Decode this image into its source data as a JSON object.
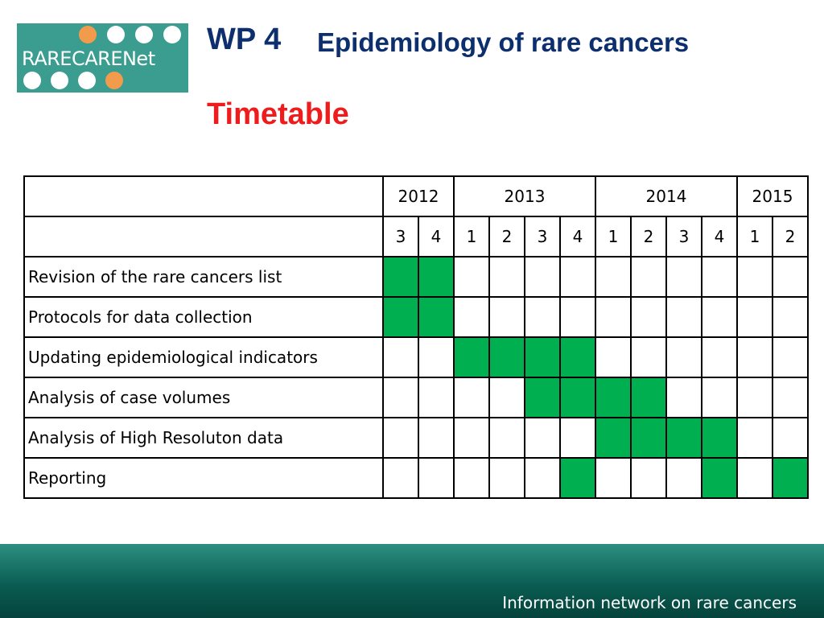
{
  "logo": {
    "text": "RARECARENet"
  },
  "title": {
    "wp": "WP 4",
    "subtitle": "Epidemiology of rare cancers"
  },
  "heading": "Timetable",
  "gantt": {
    "years": [
      {
        "label": "2012",
        "span": 2
      },
      {
        "label": "2013",
        "span": 4
      },
      {
        "label": "2014",
        "span": 4
      },
      {
        "label": "2015",
        "span": 2
      }
    ],
    "quarters": [
      "3",
      "4",
      "1",
      "2",
      "3",
      "4",
      "1",
      "2",
      "3",
      "4",
      "1",
      "2"
    ],
    "tasks": [
      {
        "label": "Revision of the rare cancers list",
        "active": [
          1,
          1,
          0,
          0,
          0,
          0,
          0,
          0,
          0,
          0,
          0,
          0
        ]
      },
      {
        "label": "Protocols for data collection",
        "active": [
          1,
          1,
          0,
          0,
          0,
          0,
          0,
          0,
          0,
          0,
          0,
          0
        ]
      },
      {
        "label": "Updating epidemiological indicators",
        "active": [
          0,
          0,
          1,
          1,
          1,
          1,
          0,
          0,
          0,
          0,
          0,
          0
        ]
      },
      {
        "label": "Analysis of case volumes",
        "active": [
          0,
          0,
          0,
          0,
          1,
          1,
          1,
          1,
          0,
          0,
          0,
          0
        ]
      },
      {
        "label": "Analysis of High Resoluton data",
        "active": [
          0,
          0,
          0,
          0,
          0,
          0,
          1,
          1,
          1,
          1,
          0,
          0
        ]
      },
      {
        "label": "Reporting",
        "active": [
          0,
          0,
          0,
          0,
          0,
          1,
          0,
          0,
          0,
          1,
          0,
          1
        ]
      }
    ],
    "fill_color": "#00b050"
  },
  "footer": {
    "text": "Information network on rare cancers"
  }
}
